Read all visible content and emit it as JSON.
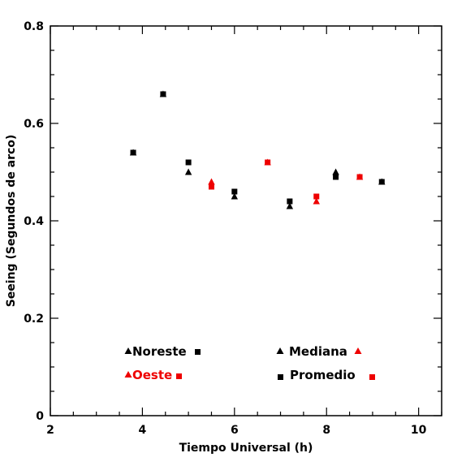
{
  "chart_data": {
    "type": "scatter",
    "xlabel": "Tiempo Universal (h)",
    "ylabel": "Seeing (Segundos de arco)",
    "xlim": [
      2,
      10.5
    ],
    "ylim": [
      0,
      0.8
    ],
    "x_ticks": [
      2,
      4,
      6,
      8,
      10
    ],
    "y_ticks": [
      0,
      0.2,
      0.4,
      0.6,
      0.8
    ],
    "x_tick_labels": [
      "2",
      "4",
      "6",
      "8",
      "10"
    ],
    "y_tick_labels": [
      "0",
      "0.2",
      "0.4",
      "0.6",
      "0.8"
    ],
    "colors": {
      "Noreste": "#000000",
      "Oeste": "#ee0000"
    },
    "series": [
      {
        "name": "Noreste",
        "statistic": "Mediana",
        "marker": "triangle",
        "color": "#000000",
        "points": [
          {
            "x": 3.8,
            "y": 0.54
          },
          {
            "x": 4.45,
            "y": 0.66
          },
          {
            "x": 5.0,
            "y": 0.5
          },
          {
            "x": 6.0,
            "y": 0.45
          },
          {
            "x": 7.2,
            "y": 0.43
          },
          {
            "x": 8.2,
            "y": 0.5
          },
          {
            "x": 9.2,
            "y": 0.48
          }
        ]
      },
      {
        "name": "Noreste",
        "statistic": "Promedio",
        "marker": "square",
        "color": "#000000",
        "points": [
          {
            "x": 3.8,
            "y": 0.54
          },
          {
            "x": 4.45,
            "y": 0.66
          },
          {
            "x": 5.0,
            "y": 0.52
          },
          {
            "x": 6.0,
            "y": 0.46
          },
          {
            "x": 7.2,
            "y": 0.44
          },
          {
            "x": 8.2,
            "y": 0.49
          },
          {
            "x": 9.2,
            "y": 0.48
          }
        ]
      },
      {
        "name": "Oeste",
        "statistic": "Mediana",
        "marker": "triangle",
        "color": "#ee0000",
        "points": [
          {
            "x": 5.5,
            "y": 0.48
          },
          {
            "x": 6.72,
            "y": 0.52
          },
          {
            "x": 7.78,
            "y": 0.44
          },
          {
            "x": 8.72,
            "y": 0.49
          }
        ]
      },
      {
        "name": "Oeste",
        "statistic": "Promedio",
        "marker": "square",
        "color": "#ee0000",
        "points": [
          {
            "x": 5.5,
            "y": 0.47
          },
          {
            "x": 6.72,
            "y": 0.52
          },
          {
            "x": 7.78,
            "y": 0.45
          },
          {
            "x": 8.72,
            "y": 0.49
          }
        ]
      }
    ],
    "legend": {
      "noreste": "Noreste",
      "oeste": "Oeste",
      "mediana": "Mediana",
      "promedio": "Promedio"
    }
  }
}
